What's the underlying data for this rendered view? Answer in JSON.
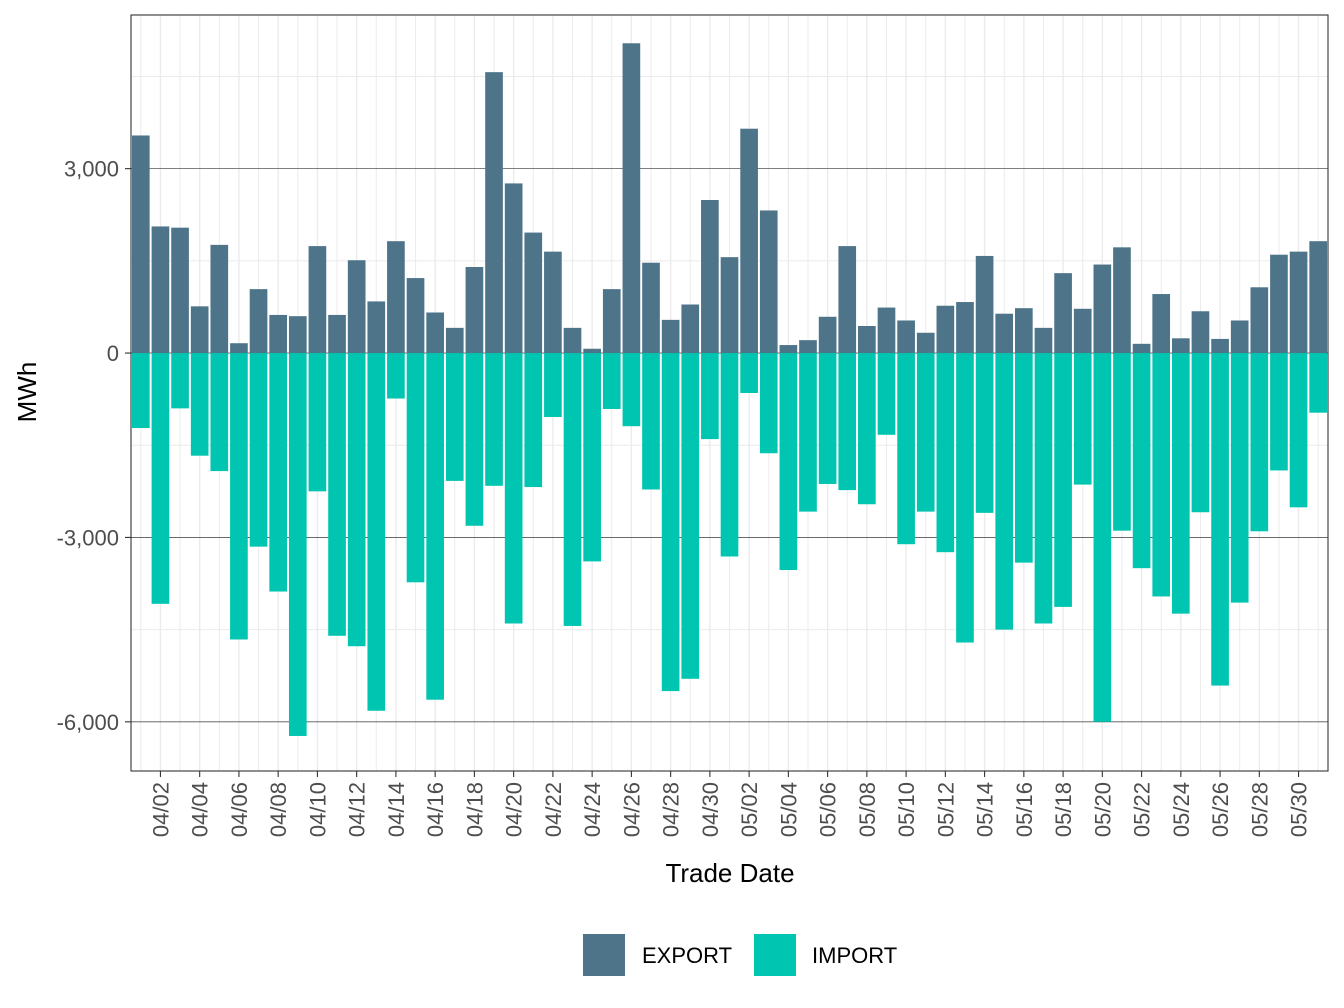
{
  "chart_data": {
    "type": "bar",
    "stacked": "diverging",
    "title": "",
    "xlabel": "Trade Date",
    "ylabel": "MWh",
    "ylim": [
      -6800,
      5500
    ],
    "y_ticks": [
      -6000,
      -3000,
      0,
      3000
    ],
    "y_tick_labels": [
      "-6,000",
      "-3,000",
      "0",
      "3,000"
    ],
    "x_tick_labels": [
      "04/02",
      "04/04",
      "04/06",
      "04/08",
      "04/10",
      "04/12",
      "04/14",
      "04/16",
      "04/18",
      "04/20",
      "04/22",
      "04/24",
      "04/26",
      "04/28",
      "04/30",
      "05/02",
      "05/04",
      "05/06",
      "05/08",
      "05/10",
      "05/12",
      "05/14",
      "05/16",
      "05/18",
      "05/20",
      "05/22",
      "05/24",
      "05/26",
      "05/28",
      "05/30"
    ],
    "categories": [
      "04/01",
      "04/02",
      "04/03",
      "04/04",
      "04/05",
      "04/06",
      "04/07",
      "04/08",
      "04/09",
      "04/10",
      "04/11",
      "04/12",
      "04/13",
      "04/14",
      "04/15",
      "04/16",
      "04/17",
      "04/18",
      "04/19",
      "04/20",
      "04/21",
      "04/22",
      "04/23",
      "04/24",
      "04/25",
      "04/26",
      "04/27",
      "04/28",
      "04/29",
      "04/30",
      "05/01",
      "05/02",
      "05/03",
      "05/04",
      "05/05",
      "05/06",
      "05/07",
      "05/08",
      "05/09",
      "05/10",
      "05/11",
      "05/12",
      "05/13",
      "05/14",
      "05/15",
      "05/16",
      "05/17",
      "05/18",
      "05/19",
      "05/20",
      "05/21",
      "05/22",
      "05/23",
      "05/24",
      "05/25",
      "05/26",
      "05/27",
      "05/28",
      "05/29",
      "05/30",
      "05/31"
    ],
    "series": [
      {
        "name": "EXPORT",
        "color": "#4E7489",
        "values": [
          3540,
          2060,
          2040,
          760,
          1760,
          160,
          1040,
          620,
          600,
          1740,
          620,
          1510,
          840,
          1820,
          1220,
          660,
          410,
          1400,
          4570,
          2760,
          1960,
          1650,
          410,
          70,
          1040,
          5040,
          1470,
          540,
          790,
          2490,
          1560,
          3650,
          2320,
          130,
          210,
          590,
          1740,
          440,
          740,
          530,
          330,
          770,
          830,
          1580,
          640,
          730,
          410,
          1300,
          720,
          1440,
          1720,
          150,
          960,
          240,
          680,
          230,
          530,
          1070,
          1600,
          1650,
          1820
        ]
      },
      {
        "name": "IMPORT",
        "color": "#00C5B0",
        "values": [
          -1220,
          -4080,
          -900,
          -1670,
          -1920,
          -4660,
          -3150,
          -3880,
          -6230,
          -2250,
          -4600,
          -4770,
          -5820,
          -740,
          -3730,
          -5640,
          -2080,
          -2810,
          -2160,
          -4400,
          -2180,
          -1040,
          -4440,
          -3390,
          -910,
          -1190,
          -2220,
          -5500,
          -5300,
          -1400,
          -3310,
          -650,
          -1630,
          -3530,
          -2580,
          -2130,
          -2230,
          -2460,
          -1330,
          -3110,
          -2580,
          -3240,
          -4710,
          -2600,
          -4500,
          -3410,
          -4400,
          -4130,
          -2140,
          -6000,
          -2890,
          -3500,
          -3960,
          -4240,
          -2590,
          -5410,
          -4060,
          -2900,
          -1910,
          -2510,
          -970
        ]
      }
    ],
    "legend": {
      "position": "bottom",
      "entries": [
        "EXPORT",
        "IMPORT"
      ]
    }
  }
}
